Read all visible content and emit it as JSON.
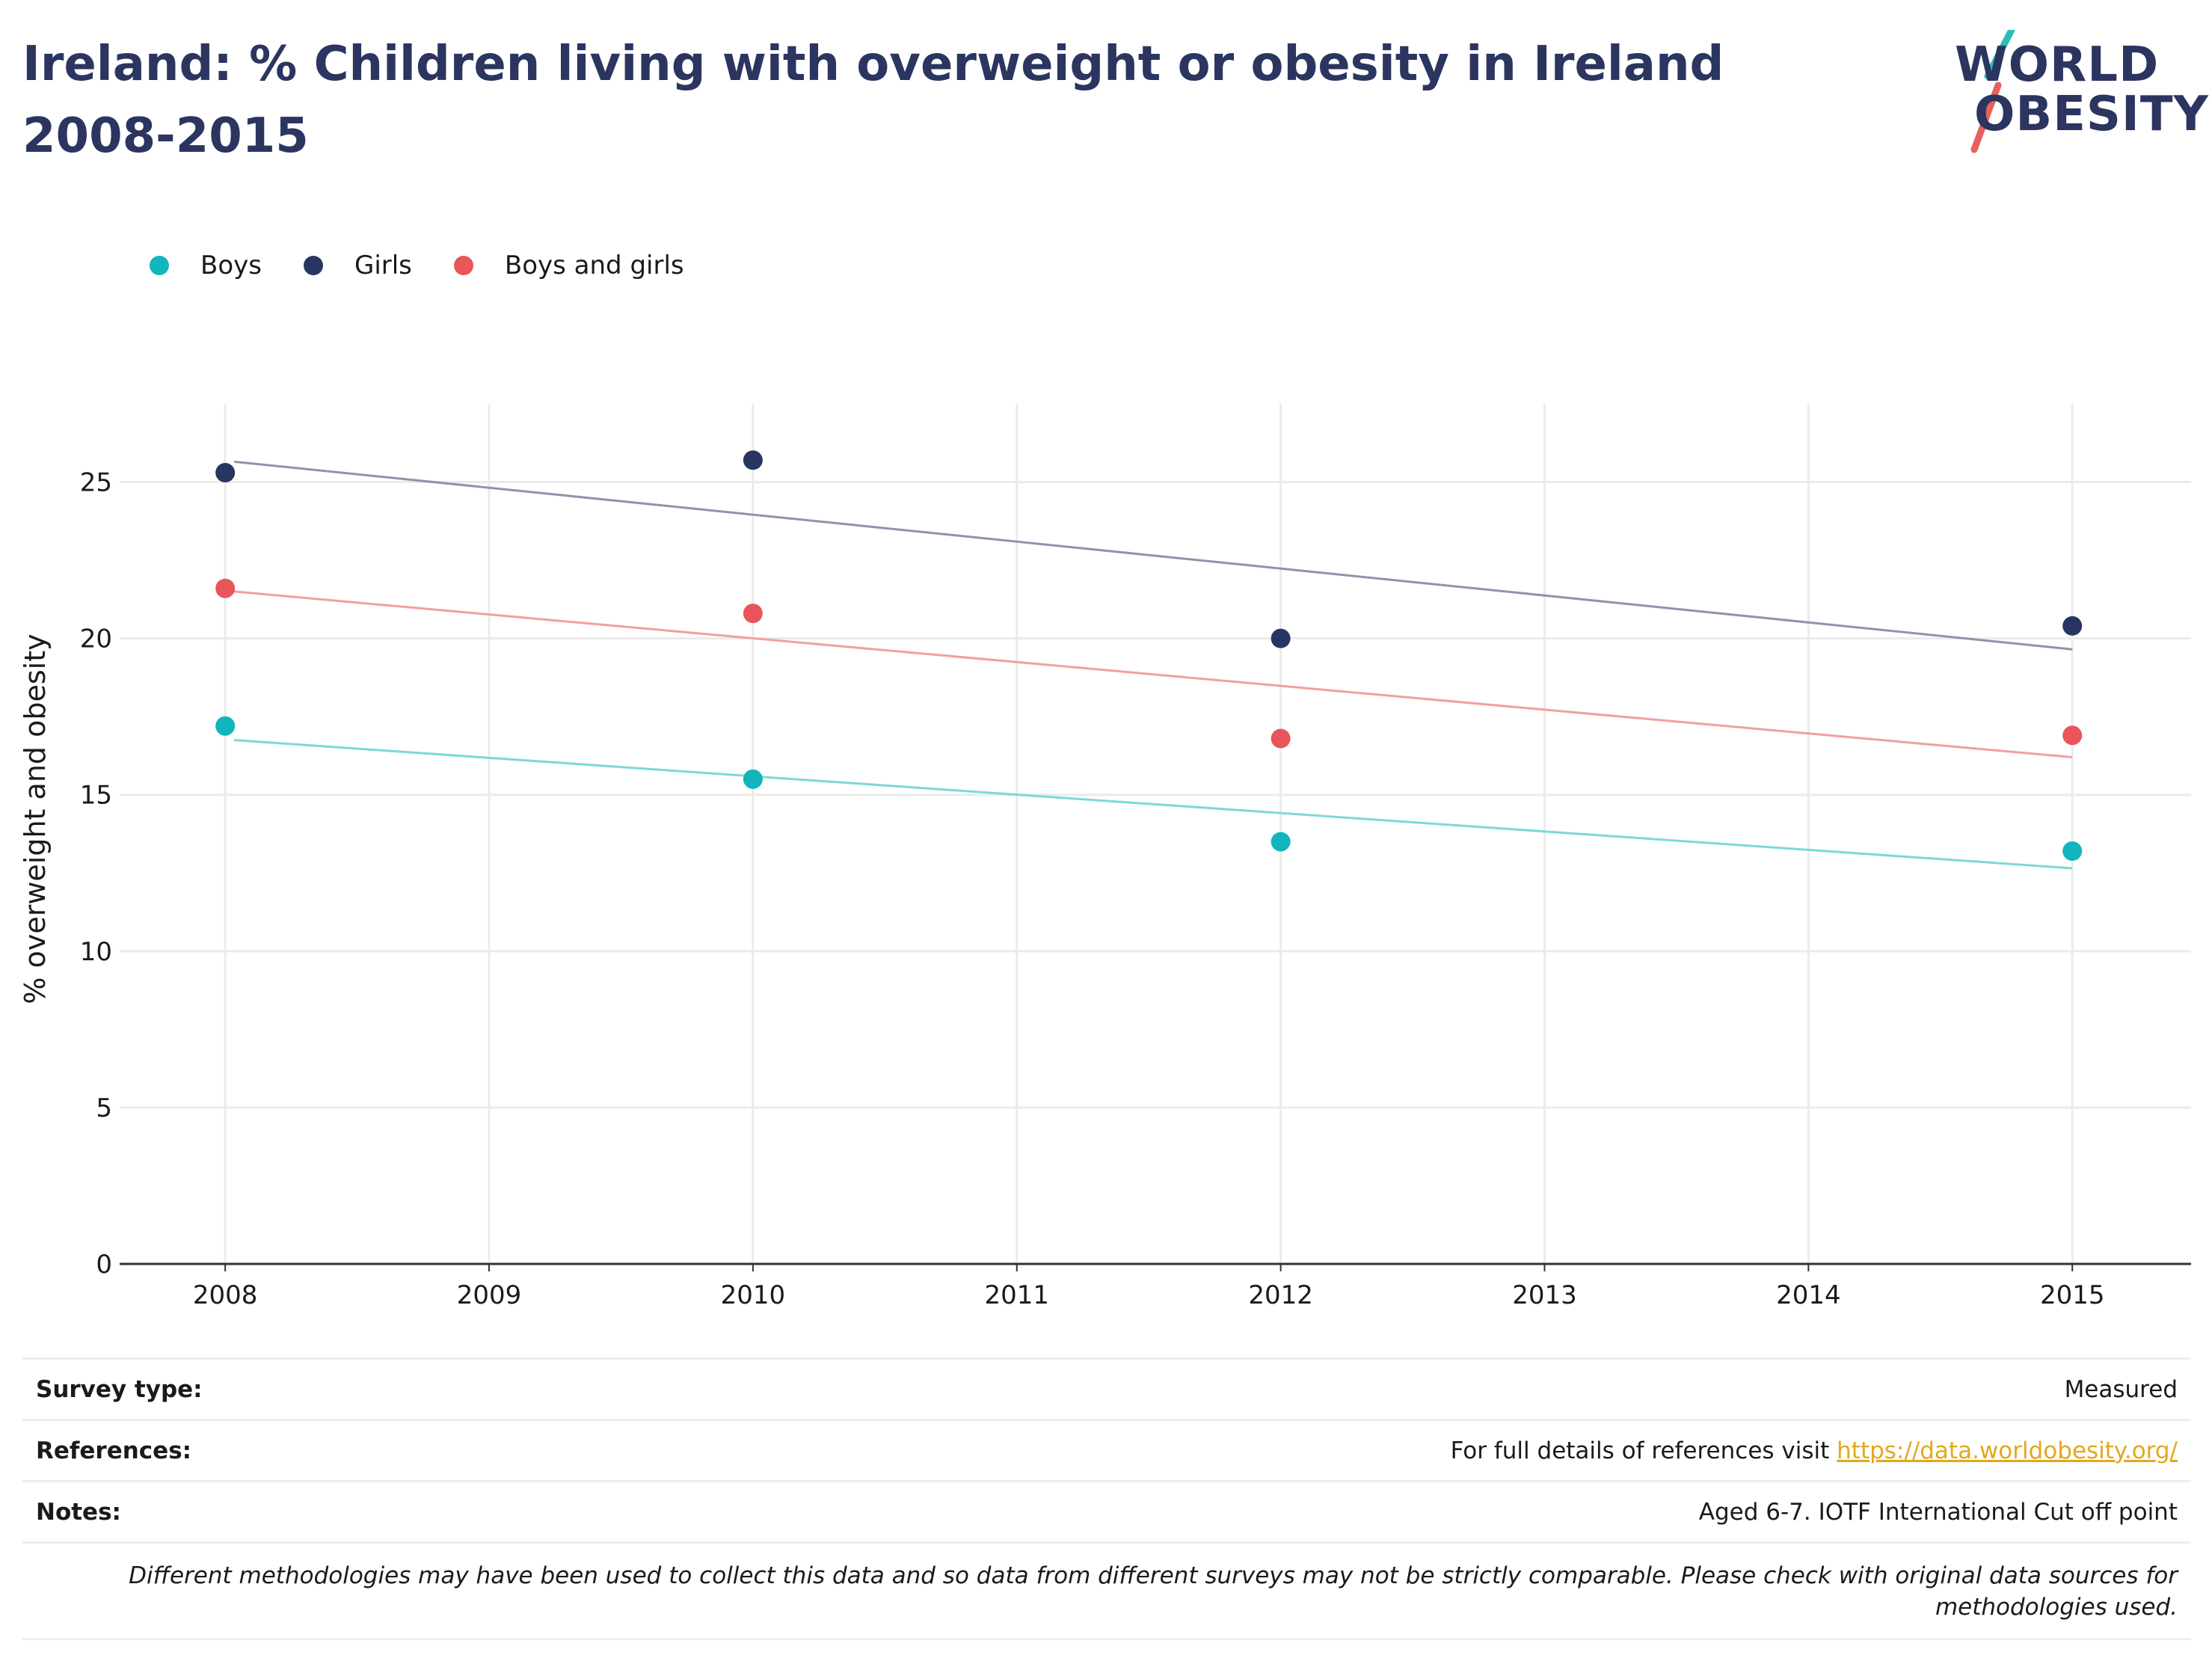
{
  "title": "Ireland: % Children living with overweight or obesity in Ireland 2008-2015",
  "logo": {
    "line1": "WORLD",
    "line2": "OBESITY",
    "colors": {
      "text": "#2b3560",
      "teal": "#2bbdb5",
      "coral": "#e8605b"
    }
  },
  "chart_data": {
    "type": "scatter",
    "x": [
      2008,
      2010,
      2012,
      2015
    ],
    "series": [
      {
        "name": "Boys",
        "color": "#12b5bd",
        "trend_color": "#7dd8d6",
        "values": [
          17.2,
          15.5,
          13.5,
          13.2
        ],
        "trend": [
          16.75,
          12.65
        ]
      },
      {
        "name": "Girls",
        "color": "#293561",
        "trend_color": "#8e94aa",
        "values": [
          25.3,
          25.7,
          20.0,
          20.4
        ],
        "trend": [
          25.65,
          19.65
        ]
      },
      {
        "name": "Boys and girls",
        "color": "#e8555a",
        "trend_color": "#f29f9f",
        "values": [
          21.6,
          20.8,
          16.8,
          16.9
        ],
        "trend": [
          21.5,
          16.2
        ]
      }
    ],
    "xlabel": "",
    "ylabel": "% overweight and obesity",
    "xlim": [
      2007.6,
      2015.45
    ],
    "ylim": [
      0,
      27.5
    ],
    "x_ticks": [
      2008,
      2009,
      2010,
      2011,
      2012,
      2013,
      2014,
      2015
    ],
    "y_ticks": [
      0,
      5,
      10,
      15,
      20,
      25
    ],
    "grid": true,
    "legend_position": "top-left"
  },
  "info": {
    "survey_type_label": "Survey type:",
    "survey_type_value": "Measured",
    "references_label": "References:",
    "references_text": "For full details of references visit ",
    "references_link": "https://data.worldobesity.org/",
    "notes_label": "Notes:",
    "notes_value": "Aged 6-7. IOTF International Cut off point",
    "disclaimer": "Different methodologies may have been used to collect this data and so data from different surveys may not be strictly comparable. Please check with original data sources for methodologies used."
  }
}
